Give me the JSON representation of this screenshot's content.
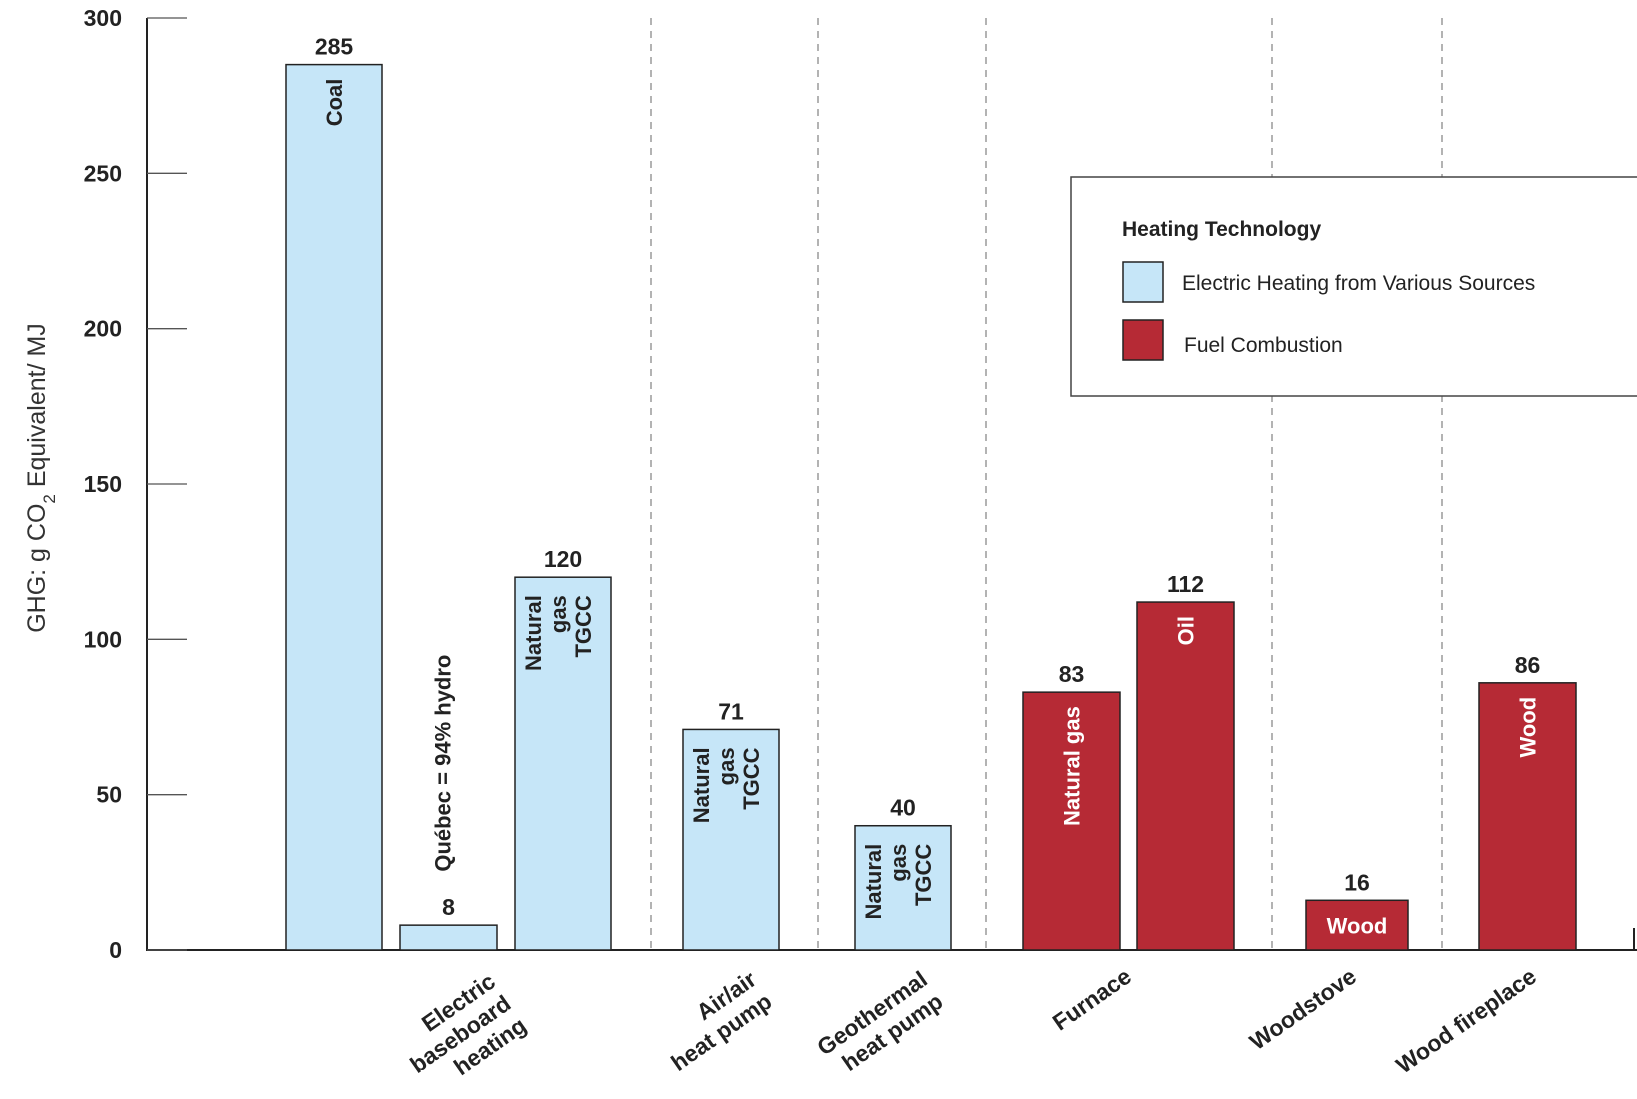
{
  "chart_data": {
    "type": "bar",
    "ylabel": "GHG:  g  CO",
    "ylabel_sub": "2",
    "ylabel_suffix": " Equivalent/ MJ",
    "ylim": [
      0,
      300
    ],
    "yticks": [
      0,
      50,
      100,
      150,
      200,
      250,
      300
    ],
    "grid": false,
    "legend": {
      "position": "top-right",
      "title": "Heating Technology",
      "items": [
        {
          "label": "Electric Heating from Various Sources",
          "color": "#c6e6f8"
        },
        {
          "label": "Fuel Combustion",
          "color": "#b62a35"
        }
      ]
    },
    "colors": {
      "electric": "#c6e6f8",
      "fuel": "#b62a35"
    },
    "groups": [
      {
        "category_lines": [
          "Electric",
          "baseboard",
          "heating"
        ]
      },
      {
        "category_lines": [
          "Air/air",
          "heat pump"
        ]
      },
      {
        "category_lines": [
          "Geothermal",
          "heat pump"
        ]
      },
      {
        "category_lines": [
          "Furnace"
        ]
      },
      {
        "category_lines": [
          "Woodstove"
        ]
      },
      {
        "category_lines": [
          "Wood fireplace"
        ]
      }
    ],
    "bars": [
      {
        "group": 0,
        "value": 285,
        "value_label": "285",
        "kind": "electric",
        "source_lines": [
          "Coal"
        ]
      },
      {
        "group": 0,
        "value": 8,
        "value_label": "8",
        "kind": "electric",
        "source_lines": [
          "Québec = 94% hydro"
        ]
      },
      {
        "group": 0,
        "value": 120,
        "value_label": "120",
        "kind": "electric",
        "source_lines": [
          "Natural",
          "gas",
          "TGCC"
        ]
      },
      {
        "group": 1,
        "value": 71,
        "value_label": "71",
        "kind": "electric",
        "source_lines": [
          "Natural",
          "gas",
          "TGCC"
        ]
      },
      {
        "group": 2,
        "value": 40,
        "value_label": "40",
        "kind": "electric",
        "source_lines": [
          "Natural",
          "gas",
          "TGCC"
        ]
      },
      {
        "group": 3,
        "value": 83,
        "value_label": "83",
        "kind": "fuel",
        "source_lines": [
          "Natural gas"
        ]
      },
      {
        "group": 3,
        "value": 112,
        "value_label": "112",
        "kind": "fuel",
        "source_lines": [
          "Oil"
        ]
      },
      {
        "group": 4,
        "value": 16,
        "value_label": "16",
        "kind": "fuel",
        "source_lines": [
          "Wood"
        ]
      },
      {
        "group": 5,
        "value": 86,
        "value_label": "86",
        "kind": "fuel",
        "source_lines": [
          "Wood"
        ]
      }
    ]
  }
}
